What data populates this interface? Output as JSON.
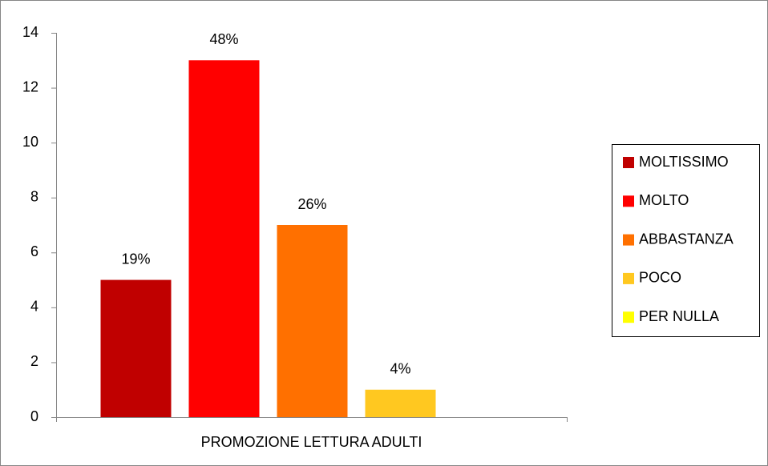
{
  "chart_data": {
    "type": "bar",
    "categories": [
      "PROMOZIONE LETTURA ADULTI"
    ],
    "series": [
      {
        "name": "MOLTISSIMO",
        "color": "#c00000",
        "values": [
          5
        ],
        "value_labels": [
          "19%"
        ]
      },
      {
        "name": "MOLTO",
        "color": "#ff0000",
        "values": [
          13
        ],
        "value_labels": [
          "48%"
        ]
      },
      {
        "name": "ABBASTANZA",
        "color": "#ff7000",
        "values": [
          7
        ],
        "value_labels": [
          "26%"
        ]
      },
      {
        "name": "POCO",
        "color": "#ffc820",
        "values": [
          1
        ],
        "value_labels": [
          "4%"
        ]
      },
      {
        "name": "PER NULLA",
        "color": "#ffff00",
        "values": [
          0
        ]
      }
    ],
    "ylim": [
      0,
      14
    ],
    "yticks": [
      0,
      2,
      4,
      6,
      8,
      10,
      12,
      14
    ],
    "grid": false,
    "legend": "right"
  }
}
